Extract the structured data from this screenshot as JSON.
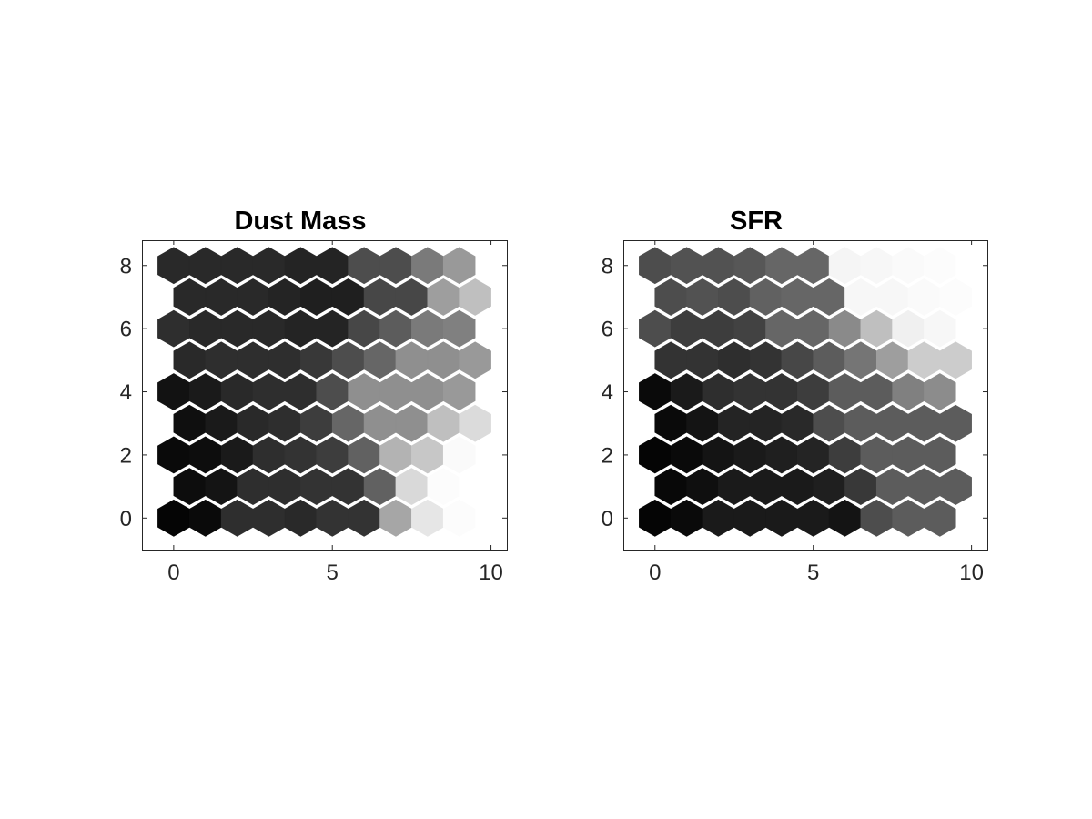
{
  "chart_data": [
    {
      "type": "heatmap",
      "layout": "hexagonal",
      "title": "Dust Mass",
      "xlabel": "",
      "ylabel": "",
      "xlim": [
        -1,
        10.5
      ],
      "ylim": [
        -1,
        8.8
      ],
      "xticks": [
        0,
        5,
        10
      ],
      "yticks": [
        0,
        2,
        4,
        6,
        8
      ],
      "grid": false,
      "colormap": "grayscale (0 = black, 1 = white)",
      "rows": [
        {
          "y": 0,
          "x_start": 0,
          "values": [
            0.02,
            0.04,
            0.18,
            0.18,
            0.16,
            0.2,
            0.2,
            0.65,
            0.9,
            0.99
          ]
        },
        {
          "y": 1,
          "x_start": 0.5,
          "values": [
            0.05,
            0.08,
            0.18,
            0.18,
            0.2,
            0.2,
            0.38,
            0.85,
            0.99,
            1.0
          ]
        },
        {
          "y": 2,
          "x_start": 0,
          "values": [
            0.04,
            0.05,
            0.1,
            0.18,
            0.2,
            0.24,
            0.38,
            0.7,
            0.78,
            0.98
          ]
        },
        {
          "y": 3,
          "x_start": 0.5,
          "values": [
            0.06,
            0.1,
            0.16,
            0.18,
            0.24,
            0.4,
            0.56,
            0.56,
            0.75,
            0.86
          ]
        },
        {
          "y": 4,
          "x_start": 0,
          "values": [
            0.07,
            0.1,
            0.16,
            0.18,
            0.18,
            0.3,
            0.56,
            0.56,
            0.56,
            0.6
          ]
        },
        {
          "y": 5,
          "x_start": 0.5,
          "values": [
            0.16,
            0.18,
            0.18,
            0.18,
            0.22,
            0.3,
            0.4,
            0.56,
            0.56,
            0.6
          ]
        },
        {
          "y": 6,
          "x_start": 0,
          "values": [
            0.18,
            0.16,
            0.16,
            0.16,
            0.14,
            0.14,
            0.28,
            0.36,
            0.48,
            0.5
          ]
        },
        {
          "y": 7,
          "x_start": 0.5,
          "values": [
            0.16,
            0.16,
            0.16,
            0.14,
            0.12,
            0.12,
            0.28,
            0.28,
            0.62,
            0.75
          ]
        },
        {
          "y": 8,
          "x_start": 0,
          "values": [
            0.16,
            0.16,
            0.16,
            0.16,
            0.14,
            0.14,
            0.3,
            0.3,
            0.48,
            0.6
          ]
        }
      ]
    },
    {
      "type": "heatmap",
      "layout": "hexagonal",
      "title": "SFR",
      "xlabel": "",
      "ylabel": "",
      "xlim": [
        -1,
        10.5
      ],
      "ylim": [
        -1,
        8.8
      ],
      "xticks": [
        0,
        5,
        10
      ],
      "yticks": [
        0,
        2,
        4,
        6,
        8
      ],
      "grid": false,
      "colormap": "grayscale (0 = black, 1 = white)",
      "rows": [
        {
          "y": 0,
          "x_start": 0,
          "values": [
            0.02,
            0.04,
            0.1,
            0.1,
            0.1,
            0.1,
            0.08,
            0.3,
            0.36,
            0.36
          ]
        },
        {
          "y": 1,
          "x_start": 0.5,
          "values": [
            0.03,
            0.06,
            0.1,
            0.1,
            0.1,
            0.12,
            0.22,
            0.36,
            0.36,
            0.36
          ]
        },
        {
          "y": 2,
          "x_start": 0,
          "values": [
            0.02,
            0.04,
            0.08,
            0.1,
            0.12,
            0.14,
            0.24,
            0.36,
            0.36,
            0.36
          ]
        },
        {
          "y": 3,
          "x_start": 0.5,
          "values": [
            0.04,
            0.08,
            0.14,
            0.14,
            0.16,
            0.3,
            0.36,
            0.36,
            0.36,
            0.36
          ]
        },
        {
          "y": 4,
          "x_start": 0,
          "values": [
            0.04,
            0.1,
            0.18,
            0.2,
            0.2,
            0.24,
            0.36,
            0.36,
            0.5,
            0.55
          ]
        },
        {
          "y": 5,
          "x_start": 0.5,
          "values": [
            0.2,
            0.2,
            0.18,
            0.2,
            0.28,
            0.36,
            0.46,
            0.62,
            0.8,
            0.8
          ]
        },
        {
          "y": 6,
          "x_start": 0,
          "values": [
            0.3,
            0.24,
            0.24,
            0.26,
            0.4,
            0.4,
            0.54,
            0.75,
            0.94,
            0.97
          ]
        },
        {
          "y": 7,
          "x_start": 0.5,
          "values": [
            0.3,
            0.32,
            0.3,
            0.38,
            0.4,
            0.4,
            0.97,
            0.97,
            0.98,
            0.99
          ]
        },
        {
          "y": 8,
          "x_start": 0,
          "values": [
            0.3,
            0.32,
            0.32,
            0.34,
            0.4,
            0.4,
            0.96,
            0.97,
            0.98,
            0.99
          ]
        }
      ]
    }
  ]
}
